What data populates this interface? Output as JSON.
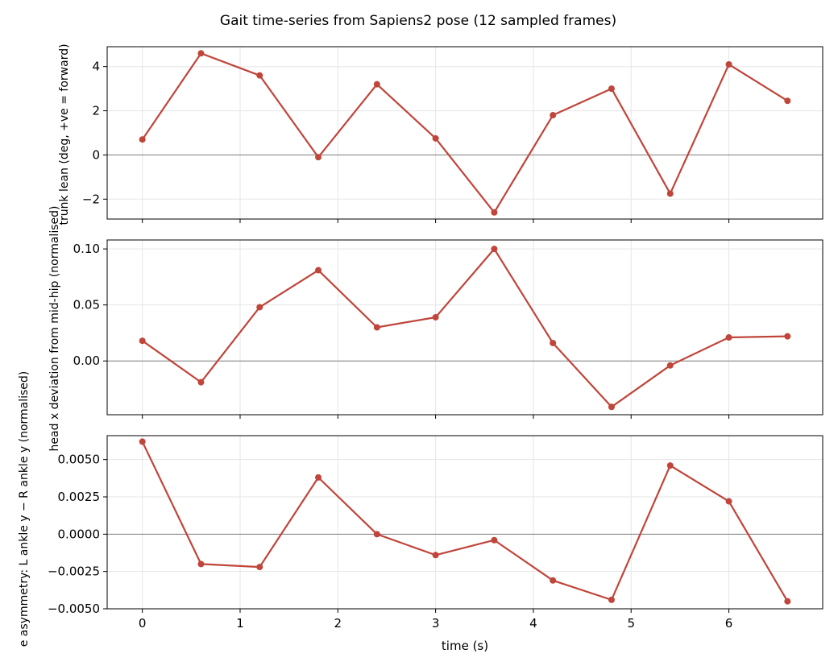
{
  "title": "Gait time-series from Sapiens2 pose (12 sampled frames)",
  "xlabel": "time (s)",
  "line_color": "#c0453a",
  "zero_line_color": "#808080",
  "chart_data": [
    {
      "type": "line",
      "ylabel": "trunk lean (deg, +ve = forward)",
      "x": [
        0,
        0.6,
        1.2,
        1.8,
        2.4,
        3.0,
        3.6,
        4.2,
        4.8,
        5.4,
        6.0,
        6.6
      ],
      "values": [
        0.7,
        4.6,
        3.6,
        -0.1,
        3.2,
        0.75,
        -2.6,
        1.8,
        3.0,
        -1.75,
        4.1,
        2.45
      ],
      "xlim": [
        -0.36,
        6.96
      ],
      "ylim": [
        -2.9,
        4.9
      ],
      "yticks": [
        -2,
        0,
        2,
        4
      ],
      "ytick_labels": [
        "−2",
        "0",
        "2",
        "4"
      ],
      "xticks": [
        0,
        1,
        2,
        3,
        4,
        5,
        6
      ],
      "xtick_labels": [],
      "grid": true
    },
    {
      "type": "line",
      "ylabel": "head x deviation from mid-hip (normalised)",
      "x": [
        0,
        0.6,
        1.2,
        1.8,
        2.4,
        3.0,
        3.6,
        4.2,
        4.8,
        5.4,
        6.0,
        6.6
      ],
      "values": [
        0.018,
        -0.019,
        0.048,
        0.081,
        0.03,
        0.039,
        0.1,
        0.016,
        -0.041,
        -0.004,
        0.021,
        0.022
      ],
      "xlim": [
        -0.36,
        6.96
      ],
      "ylim": [
        -0.048,
        0.108
      ],
      "yticks": [
        0.0,
        0.05,
        0.1
      ],
      "ytick_labels": [
        "0.00",
        "0.05",
        "0.10"
      ],
      "xticks": [
        0,
        1,
        2,
        3,
        4,
        5,
        6
      ],
      "xtick_labels": [],
      "grid": true
    },
    {
      "type": "line",
      "ylabel": "e asymmetry: L ankle y − R ankle y (normalised)",
      "x": [
        0,
        0.6,
        1.2,
        1.8,
        2.4,
        3.0,
        3.6,
        4.2,
        4.8,
        5.4,
        6.0,
        6.6
      ],
      "values": [
        0.0062,
        -0.002,
        -0.0022,
        0.0038,
        0.0,
        -0.0014,
        -0.0004,
        -0.0031,
        -0.0044,
        0.0046,
        0.0022,
        -0.0045
      ],
      "xlim": [
        -0.36,
        6.96
      ],
      "ylim": [
        -0.005,
        0.0066
      ],
      "yticks": [
        -0.005,
        -0.0025,
        0.0,
        0.0025,
        0.005
      ],
      "ytick_labels": [
        "−0.0050",
        "−0.0025",
        "0.0000",
        "0.0025",
        "0.0050"
      ],
      "xticks": [
        0,
        1,
        2,
        3,
        4,
        5,
        6
      ],
      "xtick_labels": [
        "0",
        "1",
        "2",
        "3",
        "4",
        "5",
        "6"
      ],
      "grid": true
    }
  ]
}
